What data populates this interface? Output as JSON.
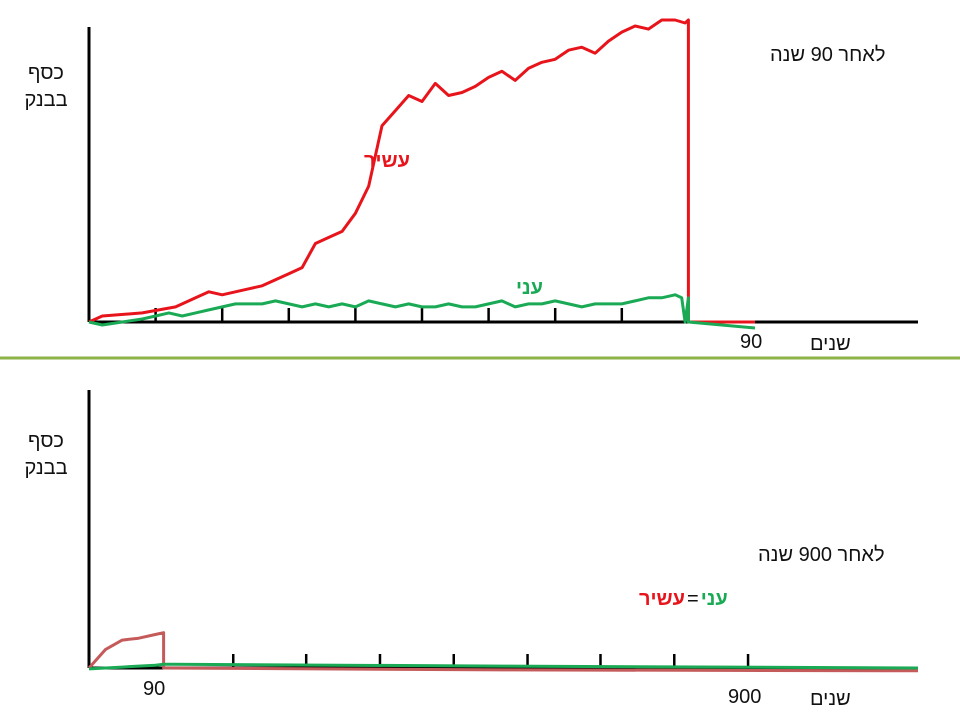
{
  "colors": {
    "rich": "#e8141b",
    "poor": "#1aaa55",
    "rich_faded": "#c45a5a",
    "divider": "#8db348",
    "axis": "#000000"
  },
  "chart_data": [
    {
      "type": "line",
      "ylabel_line1": "כסף",
      "ylabel_line2": "בבנק",
      "xlabel": "שנים",
      "annotation": "לאחר 90 שנה",
      "x_tick_label": "90",
      "xlim": [
        0,
        100
      ],
      "ylim": [
        0,
        100
      ],
      "series": [
        {
          "name": "עשיר",
          "x": [
            0,
            2,
            8,
            13,
            16,
            18,
            20,
            22,
            24,
            26,
            28,
            30,
            32,
            34,
            36,
            38,
            40,
            42,
            44,
            46,
            48,
            50,
            52,
            54,
            56,
            58,
            60,
            62,
            64,
            66,
            68,
            70,
            72,
            74,
            76,
            78,
            80,
            82,
            84,
            86,
            88,
            89.5,
            90,
            90,
            100
          ],
          "y": [
            0,
            2,
            3,
            5,
            8,
            10,
            9,
            10,
            11,
            12,
            14,
            16,
            18,
            26,
            28,
            30,
            36,
            45,
            65,
            70,
            75,
            73,
            79,
            75,
            76,
            78,
            81,
            83,
            80,
            84,
            86,
            87,
            90,
            91,
            89,
            93,
            96,
            98,
            97,
            100,
            100,
            99,
            100,
            0,
            0
          ]
        },
        {
          "name": "עני",
          "x": [
            0,
            2,
            5,
            8,
            10,
            12,
            14,
            16,
            18,
            20,
            22,
            24,
            26,
            28,
            30,
            32,
            34,
            36,
            38,
            40,
            42,
            44,
            46,
            48,
            50,
            52,
            54,
            56,
            58,
            60,
            62,
            64,
            66,
            68,
            70,
            72,
            74,
            76,
            78,
            80,
            82,
            84,
            86,
            88,
            89,
            89.5,
            90,
            90,
            100
          ],
          "y": [
            0,
            -1,
            0,
            1,
            2,
            3,
            2,
            3,
            4,
            5,
            6,
            6,
            6,
            7,
            6,
            5,
            6,
            5,
            6,
            5,
            7,
            6,
            5,
            6,
            5,
            5,
            6,
            5,
            5,
            6,
            7,
            5,
            6,
            6,
            7,
            6,
            5,
            6,
            6,
            6,
            7,
            8,
            8,
            9,
            8,
            0,
            8,
            0,
            -2
          ]
        }
      ]
    },
    {
      "type": "line",
      "ylabel_line1": "כסף",
      "ylabel_line2": "בבנק",
      "xlabel": "שנים",
      "annotation": "לאחר 900 שנה",
      "equation_rich": "עשיר",
      "equation_eq": "=",
      "equation_poor": "עני",
      "x_tick_labels": [
        "90",
        "900"
      ],
      "xlim": [
        0,
        1000
      ],
      "ylim": [
        0,
        100
      ],
      "series": [
        {
          "x": [
            0,
            20,
            40,
            60,
            80,
            90,
            90,
            500,
            1000
          ],
          "y": [
            0,
            20,
            30,
            32,
            36,
            38,
            0,
            -2,
            -3
          ]
        },
        {
          "x": [
            0,
            20,
            40,
            60,
            80,
            90,
            100,
            500,
            1000
          ],
          "y": [
            -1,
            0,
            1,
            2,
            3,
            4,
            4,
            2,
            0
          ]
        }
      ]
    }
  ]
}
